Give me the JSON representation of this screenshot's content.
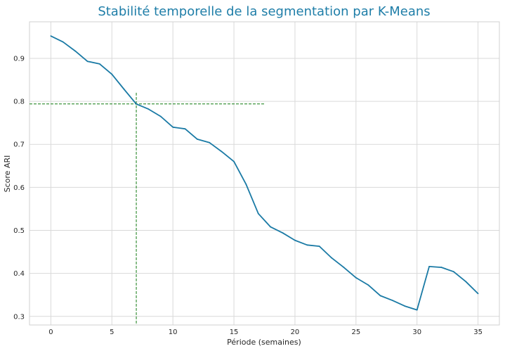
{
  "chart_data": {
    "type": "line",
    "title": "Stabilité temporelle de la segmentation par K-Means",
    "xlabel": "Période (semaines)",
    "ylabel": "Score ARI",
    "xlim": [
      -1.75,
      36.75
    ],
    "ylim": [
      0.28,
      0.985
    ],
    "xticks": [
      "0",
      "5",
      "10",
      "15",
      "20",
      "25",
      "30",
      "35"
    ],
    "yticks": [
      "0.3",
      "0.4",
      "0.5",
      "0.6",
      "0.7",
      "0.8",
      "0.9"
    ],
    "grid": true,
    "series": [
      {
        "x": [
          0,
          1,
          2,
          3,
          4,
          5,
          6,
          7,
          8,
          9,
          10,
          11,
          12,
          13,
          14,
          15,
          16,
          17,
          18,
          19,
          20,
          21,
          22,
          23,
          24,
          25,
          26,
          27,
          28,
          29,
          30,
          31,
          32,
          33,
          34,
          35
        ],
        "y": [
          0.952,
          0.938,
          0.917,
          0.893,
          0.887,
          0.863,
          0.828,
          0.794,
          0.782,
          0.765,
          0.74,
          0.736,
          0.712,
          0.704,
          0.683,
          0.66,
          0.607,
          0.539,
          0.508,
          0.494,
          0.477,
          0.466,
          0.463,
          0.436,
          0.414,
          0.39,
          0.373,
          0.348,
          0.337,
          0.324,
          0.315,
          0.416,
          0.414,
          0.404,
          0.381,
          0.353
        ],
        "color": "#1a7aa5"
      }
    ],
    "annotations": {
      "hline_y": 0.794,
      "hline_x_end": 17.5,
      "vline_x": 7,
      "vline_y_top": 0.82,
      "color": "#117a11"
    }
  }
}
